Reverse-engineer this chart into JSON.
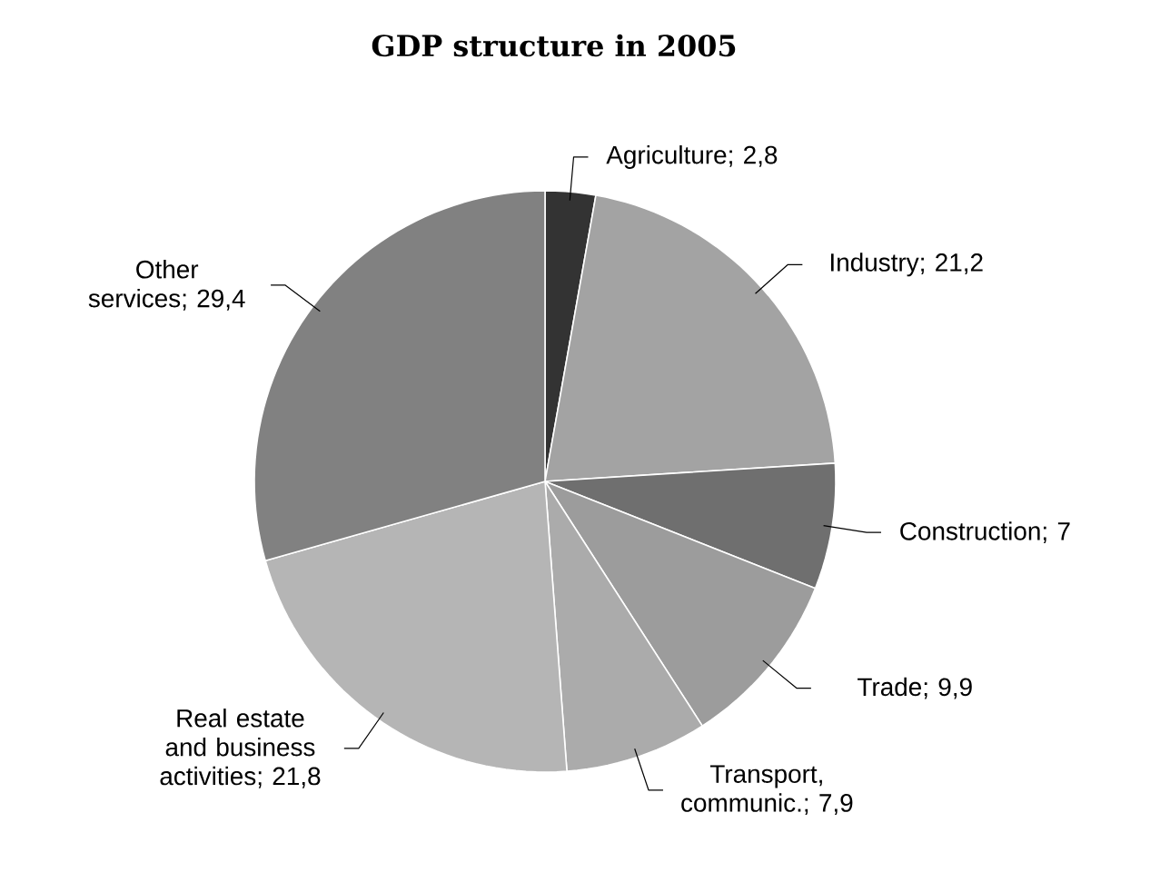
{
  "chart_data": {
    "type": "pie",
    "title": "GDP structure in 2005",
    "categories": [
      "Agriculture",
      "Industry",
      "Construction",
      "Trade",
      "Transport, communic.",
      "Real estate and business activities",
      "Other services"
    ],
    "values": [
      2.8,
      21.2,
      7,
      9.9,
      7.9,
      21.8,
      29.4
    ],
    "value_labels": [
      "; 2,8",
      "; 21,2",
      "; 7",
      "; 9,9",
      "; 7,9",
      "; 21,8",
      "; 29,4"
    ],
    "colors": [
      "#333333",
      "#a3a3a3",
      "#6f6f6f",
      "#9c9c9c",
      "#ababab",
      "#b5b5b5",
      "#818181"
    ]
  }
}
